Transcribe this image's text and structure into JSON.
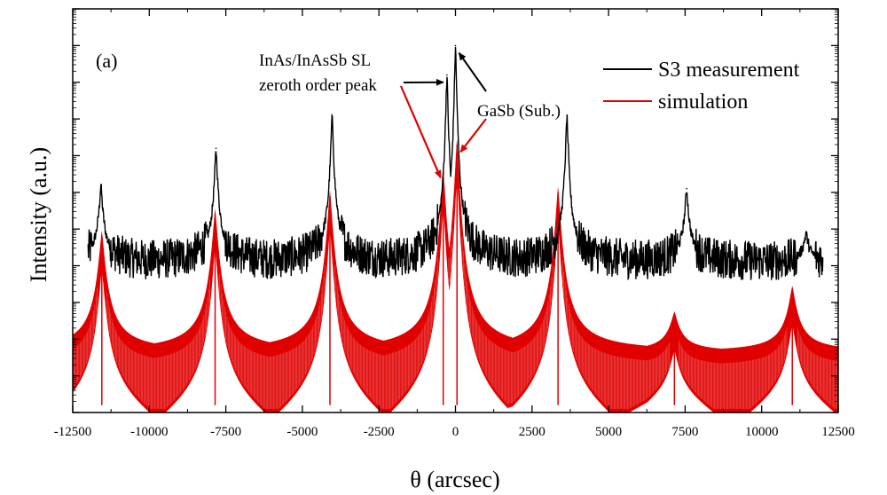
{
  "chart_data": {
    "type": "line",
    "panel_label": "(a)",
    "xlabel": "θ (arcsec)",
    "ylabel": "Intensity (a.u.)",
    "xlim": [
      -12500,
      12500
    ],
    "ylim": [
      0,
      11
    ],
    "x_ticks": [
      -12500,
      -10000,
      -7500,
      -5000,
      -2500,
      0,
      2500,
      5000,
      7500,
      10000,
      12500
    ],
    "x_tick_labels": [
      "-12500",
      "-10000",
      "-7500",
      "-5000",
      "-2500",
      "0",
      "2500",
      "5000",
      "7500",
      "10000",
      "12500"
    ],
    "y_tick_labels_visible": false,
    "legend": {
      "position": "top-right",
      "entries": [
        {
          "name": "S3 measurement",
          "color": "#000000"
        },
        {
          "name": "simulation",
          "color": "#e00000"
        }
      ]
    },
    "annotations": [
      {
        "text_lines": [
          "InAs/InAsSb SL",
          "zeroth order peak"
        ],
        "points_to": [
          -300,
          0
        ]
      },
      {
        "text": "GaSb (Sub.)",
        "points_to": [
          0,
          0
        ]
      }
    ],
    "series": [
      {
        "name": "S3 measurement",
        "color": "#000000",
        "x_range": [
          -12000,
          12000
        ],
        "baseline": 4.1,
        "noise_floor": 3.3,
        "peaks": [
          {
            "x": -11580,
            "y": 6.2
          },
          {
            "x": -7820,
            "y": 7.2
          },
          {
            "x": -4030,
            "y": 8.1
          },
          {
            "x": -280,
            "y": 9.2
          },
          {
            "x": 0,
            "y": 10.0
          },
          {
            "x": 3640,
            "y": 8.1
          },
          {
            "x": 7550,
            "y": 6.1
          },
          {
            "x": 11450,
            "y": 4.9
          }
        ]
      },
      {
        "name": "simulation",
        "color": "#e00000",
        "x_range": [
          -12500,
          12500
        ],
        "baseline": 1.5,
        "floor": 0,
        "peaks": [
          {
            "x": -11550,
            "y": 4.8
          },
          {
            "x": -7850,
            "y": 5.4
          },
          {
            "x": -4100,
            "y": 5.9
          },
          {
            "x": -400,
            "y": 6.5
          },
          {
            "x": 50,
            "y": 7.3
          },
          {
            "x": 3350,
            "y": 6.0
          },
          {
            "x": 7150,
            "y": 2.6
          },
          {
            "x": 11000,
            "y": 3.3
          }
        ]
      }
    ]
  }
}
